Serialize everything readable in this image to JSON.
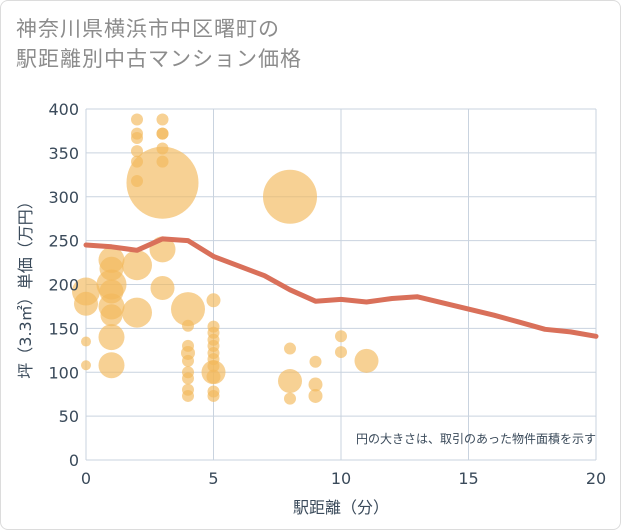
{
  "title_line1": "神奈川県横浜市中区曙町の",
  "title_line2": "駅距離別中古マンション価格",
  "chart_data": {
    "type": "scatter",
    "xlabel": "駅距離（分）",
    "ylabel": "坪（3.3㎡）単価（万円）",
    "note": "円の大きさは、取引のあった物件面積を示す",
    "xlim": [
      0,
      20
    ],
    "ylim": [
      0,
      400
    ],
    "x_ticks": [
      "0",
      "5",
      "10",
      "15",
      "20"
    ],
    "y_ticks": [
      "0",
      "50",
      "100",
      "150",
      "200",
      "250",
      "300",
      "350",
      "400"
    ],
    "colors": {
      "bubble": "#f2b85a",
      "line": "#d9705a",
      "grid": "#c9d3df"
    },
    "points": [
      {
        "x": 0,
        "y": 135,
        "s": 5
      },
      {
        "x": 0,
        "y": 108,
        "s": 5
      },
      {
        "x": 0,
        "y": 178,
        "s": 12
      },
      {
        "x": 0,
        "y": 192,
        "s": 14
      },
      {
        "x": 1,
        "y": 228,
        "s": 13
      },
      {
        "x": 1,
        "y": 218,
        "s": 12
      },
      {
        "x": 1,
        "y": 200,
        "s": 15
      },
      {
        "x": 1,
        "y": 192,
        "s": 12
      },
      {
        "x": 1,
        "y": 175,
        "s": 13
      },
      {
        "x": 1,
        "y": 165,
        "s": 11
      },
      {
        "x": 1,
        "y": 140,
        "s": 13
      },
      {
        "x": 1,
        "y": 108,
        "s": 13
      },
      {
        "x": 2,
        "y": 388,
        "s": 6
      },
      {
        "x": 2,
        "y": 372,
        "s": 6
      },
      {
        "x": 2,
        "y": 367,
        "s": 6
      },
      {
        "x": 2,
        "y": 352,
        "s": 6
      },
      {
        "x": 2,
        "y": 340,
        "s": 6
      },
      {
        "x": 2,
        "y": 318,
        "s": 6
      },
      {
        "x": 2,
        "y": 222,
        "s": 15
      },
      {
        "x": 2,
        "y": 168,
        "s": 15
      },
      {
        "x": 3,
        "y": 388,
        "s": 6
      },
      {
        "x": 3,
        "y": 372,
        "s": 6
      },
      {
        "x": 3,
        "y": 372,
        "s": 6
      },
      {
        "x": 3,
        "y": 355,
        "s": 6
      },
      {
        "x": 3,
        "y": 340,
        "s": 6
      },
      {
        "x": 3,
        "y": 316,
        "s": 36
      },
      {
        "x": 3,
        "y": 240,
        "s": 13
      },
      {
        "x": 3,
        "y": 196,
        "s": 12
      },
      {
        "x": 4,
        "y": 172,
        "s": 17
      },
      {
        "x": 4,
        "y": 153,
        "s": 6
      },
      {
        "x": 4,
        "y": 130,
        "s": 6
      },
      {
        "x": 4,
        "y": 122,
        "s": 7
      },
      {
        "x": 4,
        "y": 113,
        "s": 6
      },
      {
        "x": 4,
        "y": 100,
        "s": 6
      },
      {
        "x": 4,
        "y": 93,
        "s": 6
      },
      {
        "x": 4,
        "y": 80,
        "s": 6
      },
      {
        "x": 4,
        "y": 73,
        "s": 6
      },
      {
        "x": 5,
        "y": 182,
        "s": 7
      },
      {
        "x": 5,
        "y": 152,
        "s": 6
      },
      {
        "x": 5,
        "y": 145,
        "s": 6
      },
      {
        "x": 5,
        "y": 137,
        "s": 6
      },
      {
        "x": 5,
        "y": 130,
        "s": 6
      },
      {
        "x": 5,
        "y": 122,
        "s": 6
      },
      {
        "x": 5,
        "y": 115,
        "s": 6
      },
      {
        "x": 5,
        "y": 107,
        "s": 6
      },
      {
        "x": 5,
        "y": 100,
        "s": 12
      },
      {
        "x": 5,
        "y": 95,
        "s": 7
      },
      {
        "x": 5,
        "y": 78,
        "s": 6
      },
      {
        "x": 5,
        "y": 73,
        "s": 6
      },
      {
        "x": 8,
        "y": 300,
        "s": 27
      },
      {
        "x": 8,
        "y": 127,
        "s": 6
      },
      {
        "x": 8,
        "y": 90,
        "s": 12
      },
      {
        "x": 8,
        "y": 70,
        "s": 6
      },
      {
        "x": 9,
        "y": 112,
        "s": 6
      },
      {
        "x": 9,
        "y": 86,
        "s": 7
      },
      {
        "x": 9,
        "y": 73,
        "s": 7
      },
      {
        "x": 10,
        "y": 141,
        "s": 6
      },
      {
        "x": 10,
        "y": 123,
        "s": 6
      },
      {
        "x": 11,
        "y": 113,
        "s": 12
      }
    ],
    "trend": {
      "x": [
        0,
        1,
        2,
        3,
        4,
        5,
        6,
        7,
        8,
        9,
        10,
        11,
        12,
        13,
        14,
        15,
        16,
        17,
        18,
        19,
        20
      ],
      "y": [
        245,
        243,
        239,
        252,
        250,
        232,
        221,
        210,
        194,
        181,
        183,
        180,
        184,
        186,
        179,
        172,
        165,
        157,
        149,
        146,
        141
      ]
    }
  }
}
